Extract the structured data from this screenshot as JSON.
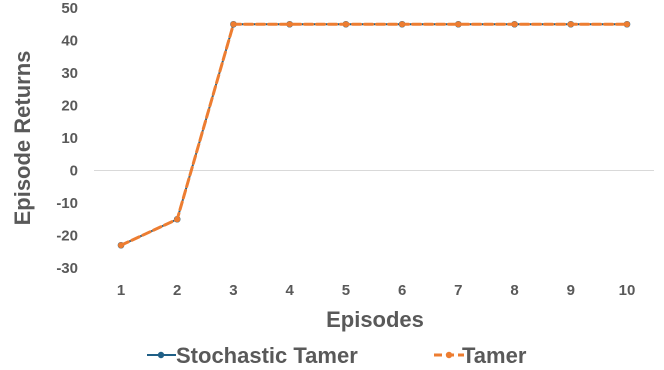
{
  "chart_data": {
    "type": "line",
    "xlabel": "Episodes",
    "ylabel": "Episode Returns",
    "x": [
      1,
      2,
      3,
      4,
      5,
      6,
      7,
      8,
      9,
      10
    ],
    "x_ticks": [
      "1",
      "2",
      "3",
      "4",
      "5",
      "6",
      "7",
      "8",
      "9",
      "10"
    ],
    "y_ticks": [
      "50",
      "40",
      "30",
      "20",
      "10",
      "0",
      "-10",
      "-20",
      "-30"
    ],
    "y_tick_values": [
      50,
      40,
      30,
      20,
      10,
      0,
      -10,
      -20,
      -30
    ],
    "ylim": [
      -30,
      50
    ],
    "grid": false,
    "legend_position": "bottom",
    "series": [
      {
        "name": "Stochastic Tamer",
        "values": [
          -23,
          -15,
          45,
          45,
          45,
          45,
          45,
          45,
          45,
          45
        ],
        "color": "#1f5f86",
        "style": "solid",
        "marker": "circle"
      },
      {
        "name": "Tamer",
        "values": [
          -23,
          -15,
          45,
          45,
          45,
          45,
          45,
          45,
          45,
          45
        ],
        "color": "#ed7d31",
        "style": "dashed",
        "marker": "circle"
      }
    ]
  }
}
